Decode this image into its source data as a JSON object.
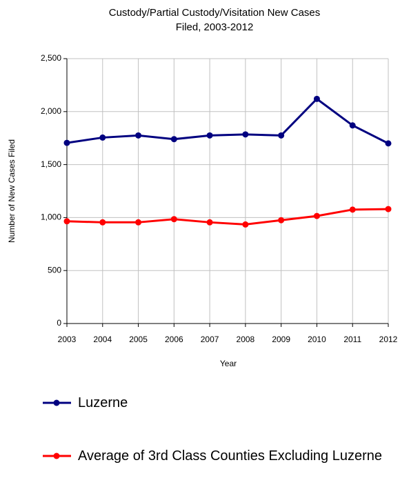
{
  "chart_data": {
    "type": "line",
    "title": "Custody/Partial Custody/Visitation New Cases Filed, 2003-2012",
    "x_label": "Year",
    "y_label": "Number of New Cases Filed",
    "categories": [
      "2003",
      "2004",
      "2005",
      "2006",
      "2007",
      "2008",
      "2009",
      "2010",
      "2011",
      "2012"
    ],
    "series": [
      {
        "name": "Luzerne",
        "color": "#000080",
        "values": [
          1705,
          1755,
          1775,
          1740,
          1775,
          1785,
          1775,
          2120,
          1870,
          1700
        ]
      },
      {
        "name": "Average of 3rd Class Counties Excluding Luzerne",
        "color": "#ff0000",
        "values": [
          965,
          955,
          955,
          985,
          955,
          935,
          975,
          1015,
          1075,
          1080
        ]
      }
    ],
    "ylim": [
      0,
      2500
    ],
    "yticks": [
      0,
      500,
      {
        "value": 1000,
        "label": "1,000"
      },
      {
        "value": 1500,
        "label": "1,500"
      },
      {
        "value": 2000,
        "label": "2,000"
      },
      {
        "value": 2500,
        "label": "2,500"
      }
    ],
    "grid": true,
    "legend": "bottom"
  }
}
